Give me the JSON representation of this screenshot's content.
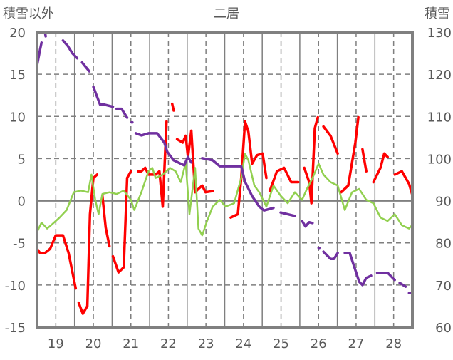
{
  "chart_data": {
    "type": "line",
    "title": "二居",
    "ylabel_left": "積雪以外",
    "ylabel_right": "積雪",
    "xlim": [
      18.5,
      28.5
    ],
    "ylim_left": [
      -15,
      20
    ],
    "ylim_right": [
      60,
      130
    ],
    "x_ticks": [
      19,
      20,
      21,
      22,
      23,
      24,
      25,
      26,
      27,
      28
    ],
    "x_tick_labels": [
      "19",
      "20",
      "21",
      "22",
      "23",
      "24",
      "25",
      "26",
      "27",
      "28"
    ],
    "y_ticks_left": [
      20,
      15,
      10,
      5,
      0,
      -5,
      -10,
      -15
    ],
    "y_tick_labels_left": [
      "20",
      "15",
      "10",
      "5",
      "0",
      "-5",
      "-10",
      "-15"
    ],
    "y_ticks_right": [
      130,
      120,
      110,
      100,
      90,
      80,
      70,
      60
    ],
    "y_tick_labels_right": [
      "130",
      "120",
      "110",
      "100",
      "90",
      "80",
      "70",
      "60"
    ],
    "grid": true,
    "series": [
      {
        "name": "red-series",
        "axis": "left",
        "color": "#FF0000",
        "points": [
          [
            18.49,
            -5.7
          ],
          [
            18.58,
            -6.2
          ],
          [
            18.71,
            -6.2
          ],
          [
            18.85,
            -5.7
          ],
          [
            19.0,
            -4.1
          ],
          [
            19.19,
            -4.1
          ],
          [
            19.34,
            -6.2
          ],
          [
            19.44,
            -8.4
          ],
          [
            19.53,
            -10.4
          ],
          null,
          [
            19.61,
            -12.1
          ],
          [
            19.72,
            -13.4
          ],
          [
            19.84,
            -12.5
          ],
          [
            19.91,
            -1.6
          ],
          [
            20.0,
            2.7
          ],
          [
            20.1,
            3.1
          ],
          null,
          [
            20.24,
            0.6
          ],
          [
            20.33,
            -3.2
          ],
          [
            20.43,
            -5.4
          ],
          null,
          [
            20.52,
            -6.6
          ],
          [
            20.67,
            -8.5
          ],
          [
            20.81,
            -7.9
          ],
          [
            20.9,
            2.7
          ],
          [
            21.0,
            3.5
          ],
          null,
          [
            21.19,
            3.5
          ],
          [
            21.28,
            3.5
          ],
          [
            21.38,
            3.9
          ],
          [
            21.47,
            3.1
          ],
          [
            21.66,
            3.1
          ],
          [
            21.76,
            3.5
          ],
          [
            21.85,
            -0.7
          ],
          [
            21.95,
            9.4
          ],
          null,
          [
            22.1,
            11.5
          ],
          [
            22.14,
            10.7
          ],
          null,
          [
            22.23,
            7.3
          ],
          [
            22.38,
            6.9
          ],
          [
            22.46,
            7.7
          ],
          [
            22.52,
            5.2
          ],
          [
            22.61,
            8.3
          ],
          [
            22.71,
            1.0
          ],
          [
            22.8,
            1.4
          ],
          [
            22.9,
            1.8
          ],
          [
            22.99,
            1.0
          ],
          [
            23.18,
            1.15
          ],
          null,
          [
            23.66,
            -2.0
          ],
          [
            23.85,
            -1.6
          ],
          [
            23.94,
            2.7
          ],
          [
            24.04,
            9.4
          ],
          [
            24.13,
            8.2
          ],
          [
            24.23,
            4.4
          ],
          [
            24.36,
            5.4
          ],
          [
            24.51,
            5.6
          ],
          [
            24.61,
            2.7
          ],
          null,
          [
            24.7,
            1.15
          ],
          [
            24.89,
            3.5
          ],
          [
            25.08,
            3.9
          ],
          [
            25.27,
            2.2
          ],
          [
            25.46,
            2.2
          ],
          null,
          [
            25.62,
            3.9
          ],
          [
            25.75,
            2.2
          ],
          [
            25.81,
            -0.3
          ],
          [
            25.9,
            8.6
          ],
          [
            25.98,
            9.9
          ],
          null,
          [
            26.13,
            8.8
          ],
          [
            26.32,
            7.7
          ],
          [
            26.51,
            5.6
          ],
          null,
          [
            26.6,
            1.0
          ],
          [
            26.79,
            1.8
          ],
          [
            26.98,
            6.9
          ],
          [
            27.06,
            9.9
          ],
          null,
          [
            27.17,
            6.1
          ],
          [
            27.27,
            3.5
          ],
          null,
          [
            27.46,
            2.2
          ],
          [
            27.65,
            3.9
          ],
          [
            27.75,
            5.6
          ],
          [
            27.84,
            5.2
          ],
          null,
          [
            28.03,
            3.1
          ],
          [
            28.22,
            3.5
          ],
          [
            28.41,
            2.0
          ],
          [
            28.49,
            0.8
          ]
        ]
      },
      {
        "name": "green-series",
        "axis": "left",
        "color": "#92D050",
        "points": [
          [
            18.49,
            -3.7
          ],
          [
            18.62,
            -2.6
          ],
          [
            18.77,
            -3.3
          ],
          [
            18.9,
            -2.8
          ],
          [
            19.1,
            -2.0
          ],
          [
            19.29,
            -1.1
          ],
          [
            19.48,
            1.0
          ],
          [
            19.67,
            1.2
          ],
          [
            19.86,
            1.0
          ],
          [
            19.95,
            3.1
          ],
          [
            20.05,
            0.1
          ],
          [
            20.14,
            -1.6
          ],
          [
            20.24,
            0.8
          ],
          [
            20.43,
            1.0
          ],
          [
            20.62,
            0.8
          ],
          [
            20.81,
            1.2
          ],
          [
            21.0,
            0.1
          ],
          [
            21.09,
            -1.1
          ],
          [
            21.28,
            1.0
          ],
          [
            21.47,
            3.5
          ],
          [
            21.57,
            3.9
          ],
          [
            21.66,
            2.7
          ],
          [
            21.85,
            3.1
          ],
          [
            22.04,
            3.9
          ],
          [
            22.19,
            3.5
          ],
          [
            22.33,
            2.2
          ],
          [
            22.46,
            4.5
          ],
          [
            22.56,
            -1.6
          ],
          [
            22.71,
            3.9
          ],
          [
            22.8,
            -3.3
          ],
          [
            22.9,
            -4.1
          ],
          [
            23.03,
            -2.4
          ],
          [
            23.18,
            -0.7
          ],
          [
            23.37,
            0.1
          ],
          [
            23.52,
            -0.7
          ],
          [
            23.75,
            -0.3
          ],
          [
            23.94,
            2.7
          ],
          [
            24.04,
            5.6
          ],
          [
            24.13,
            4.8
          ],
          [
            24.29,
            1.8
          ],
          [
            24.42,
            1.0
          ],
          [
            24.61,
            -0.7
          ],
          [
            24.8,
            1.8
          ],
          [
            24.99,
            0.6
          ],
          [
            25.18,
            -0.3
          ],
          [
            25.37,
            1.0
          ],
          [
            25.56,
            0.1
          ],
          [
            25.69,
            1.4
          ],
          [
            25.84,
            2.7
          ],
          [
            26.0,
            4.4
          ],
          [
            26.13,
            3.1
          ],
          [
            26.32,
            2.2
          ],
          [
            26.51,
            1.8
          ],
          [
            26.7,
            -1.1
          ],
          [
            26.89,
            1.0
          ],
          [
            27.08,
            1.4
          ],
          [
            27.27,
            0.1
          ],
          [
            27.46,
            -0.3
          ],
          [
            27.65,
            -2.0
          ],
          [
            27.84,
            -2.4
          ],
          [
            28.03,
            -1.6
          ],
          [
            28.22,
            -2.9
          ],
          [
            28.41,
            -3.3
          ],
          [
            28.49,
            -2.9
          ]
        ]
      },
      {
        "name": "purple-series",
        "axis": "right",
        "color": "#7030A0",
        "points": [
          [
            18.49,
            122.1
          ],
          [
            18.58,
            125.8
          ],
          [
            18.62,
            127.5
          ],
          null,
          [
            18.71,
            130
          ],
          [
            18.73,
            129
          ],
          null,
          [
            19.19,
            128
          ],
          [
            19.32,
            126.7
          ],
          [
            19.44,
            125
          ],
          [
            19.57,
            123.8
          ],
          null,
          [
            19.7,
            122.8
          ],
          [
            19.89,
            120.7
          ],
          null,
          [
            20.0,
            117
          ],
          [
            20.18,
            112.8
          ],
          [
            20.29,
            112.8
          ],
          [
            20.52,
            112.3
          ],
          null,
          [
            20.62,
            111.8
          ],
          [
            20.75,
            111.8
          ],
          [
            20.9,
            109.7
          ],
          null,
          [
            21.02,
            108.6
          ],
          [
            21.04,
            108.6
          ],
          null,
          [
            21.13,
            106
          ],
          [
            21.28,
            105.5
          ],
          [
            21.47,
            106
          ],
          [
            21.7,
            106
          ],
          [
            21.89,
            103.8
          ],
          [
            21.97,
            101.6
          ],
          [
            22.14,
            99.6
          ],
          [
            22.42,
            98.4
          ],
          [
            22.52,
            100.4
          ],
          [
            22.61,
            99.1
          ],
          null,
          [
            22.9,
            100.1
          ],
          [
            23.18,
            99.6
          ],
          [
            23.37,
            98.2
          ],
          [
            23.94,
            98.2
          ],
          [
            24.04,
            94.5
          ],
          [
            24.23,
            91.1
          ],
          [
            24.42,
            88.6
          ],
          [
            24.55,
            87.7
          ],
          [
            24.8,
            88.3
          ],
          null,
          [
            24.99,
            87.2
          ],
          [
            25.27,
            86.6
          ],
          [
            25.37,
            86.4
          ],
          null,
          [
            25.56,
            85.2
          ],
          [
            25.65,
            83.9
          ],
          [
            25.75,
            84.9
          ],
          [
            25.84,
            84.7
          ],
          null,
          [
            26.0,
            78.8
          ],
          [
            26.02,
            78.8
          ],
          null,
          [
            26.13,
            77.9
          ],
          [
            26.32,
            76.2
          ],
          [
            26.41,
            76.2
          ],
          [
            26.51,
            77.6
          ],
          null,
          [
            26.7,
            77.6
          ],
          [
            26.83,
            77.6
          ],
          [
            27.08,
            70.8
          ],
          [
            27.17,
            70
          ],
          [
            27.27,
            71.7
          ],
          [
            27.4,
            72.2
          ],
          null,
          [
            27.56,
            72.9
          ],
          [
            27.84,
            72.9
          ],
          [
            28.03,
            71.2
          ],
          null,
          [
            28.16,
            70.5
          ],
          [
            28.32,
            69.6
          ],
          null,
          [
            28.41,
            68.1
          ],
          [
            28.49,
            68.1
          ]
        ]
      }
    ]
  }
}
